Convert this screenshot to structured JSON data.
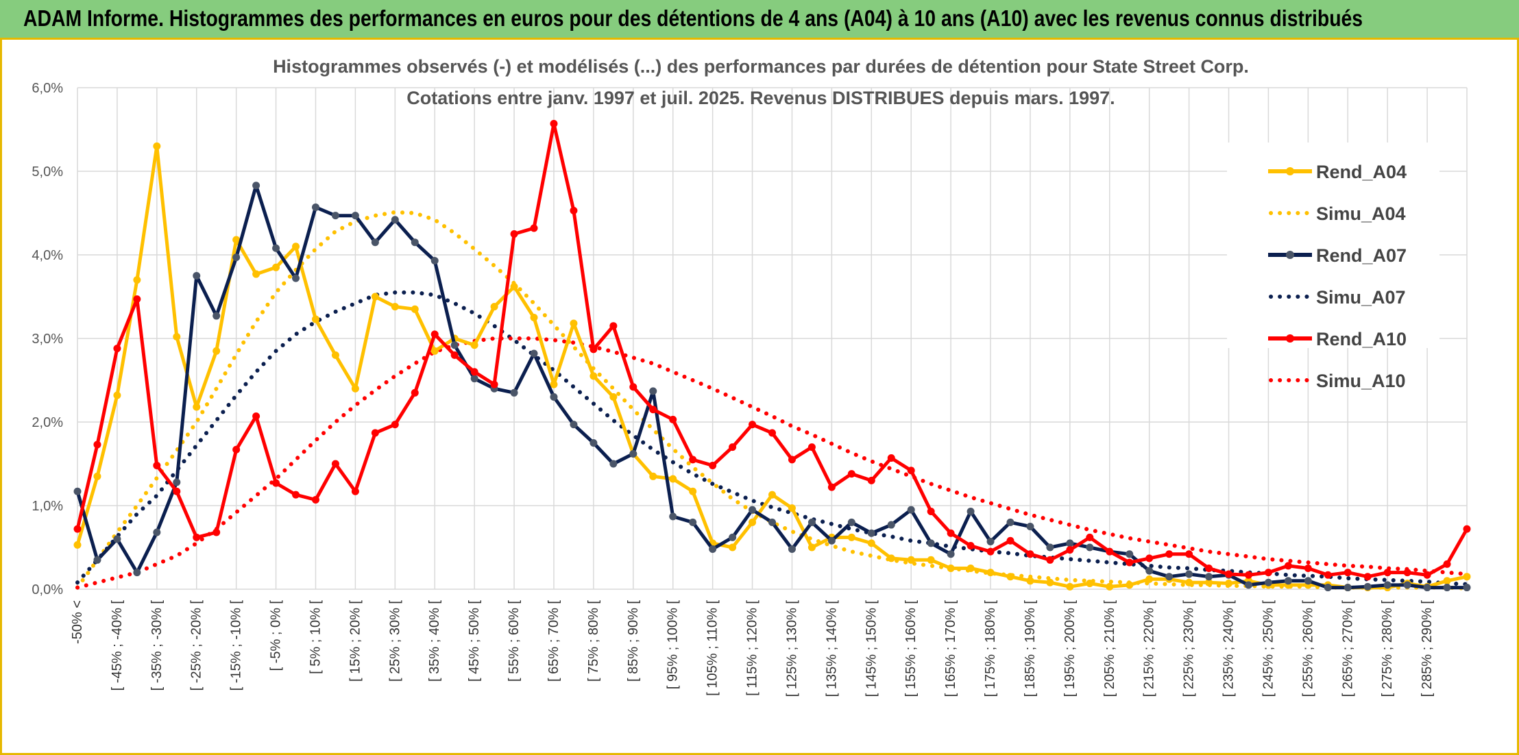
{
  "header": {
    "title": "ADAM Informe. Histogrammes des performances en euros pour des détentions de 4 ans (A04) à 10 ans (A10) avec les revenus connus distribués"
  },
  "chart_data": {
    "type": "line",
    "title": "Histogrammes observés (-) et modélisés (...) des performances par durées de détention pour State Street Corp.",
    "subtitle": "Cotations entre janv. 1997 et juil. 2025. Revenus DISTRIBUES depuis mars. 1997.",
    "ylim": [
      0,
      6
    ],
    "y_ticks": [
      "0,0%",
      "1,0%",
      "2,0%",
      "3,0%",
      "4,0%",
      "5,0%",
      "6,0%"
    ],
    "grid": true,
    "legend_position": "right",
    "tick_labels": [
      "-50% <",
      "[ -45% ; -40% [",
      "[ -35% ; -30% [",
      "[ -25% ; -20% [",
      "[ -15% ; -10% [",
      "[ -5% ; 0% [",
      "[ 5% ; 10% [",
      "[ 15% ; 20% [",
      "[ 25% ; 30% [",
      "[ 35% ; 40% [",
      "[ 45% ; 50% [",
      "[ 55% ; 60% [",
      "[ 65% ; 70% [",
      "[ 75% ; 80% [",
      "[ 85% ; 90% [",
      "[ 95% ; 100% [",
      "[ 105% ; 110% [",
      "[ 115% ; 120% [",
      "[ 125% ; 130% [",
      "[ 135% ; 140% [",
      "[ 145% ; 150% [",
      "[ 155% ; 160% [",
      "[ 165% ; 170% [",
      "[ 175% ; 180% [",
      "[ 185% ; 190% [",
      "[ 195% ; 200% [",
      "[ 205% ; 210% [",
      "[ 215% ; 220% [",
      "[ 225% ; 230% [",
      "[ 235% ; 240% [",
      "[ 245% ; 250% [",
      "[ 255% ; 260% [",
      "[ 265% ; 270% [",
      "[ 275% ; 280% [",
      "[ 285% ; 290% ["
    ],
    "series": [
      {
        "name": "Rend_A04",
        "color": "#FFC000",
        "style": "solid",
        "values": [
          0.53,
          1.35,
          2.32,
          3.7,
          5.3,
          3.02,
          2.18,
          2.85,
          4.18,
          3.77,
          3.85,
          4.1,
          3.23,
          2.8,
          2.4,
          3.5,
          3.38,
          3.35,
          2.85,
          3.0,
          2.92,
          3.38,
          3.62,
          3.25,
          2.45,
          3.18,
          2.55,
          2.3,
          1.62,
          1.35,
          1.32,
          1.17,
          0.55,
          0.5,
          0.8,
          1.13,
          0.97,
          0.5,
          0.62,
          0.62,
          0.55,
          0.37,
          0.35,
          0.35,
          0.25,
          0.25,
          0.2,
          0.15,
          0.1,
          0.08,
          0.03,
          0.07,
          0.03,
          0.05,
          0.12,
          0.12,
          0.08,
          0.08,
          0.07,
          0.1,
          0.05,
          0.05,
          0.05,
          0.05,
          0.02,
          0.02,
          0.02,
          0.07,
          0.03,
          0.1,
          0.15
        ]
      },
      {
        "name": "Simu_A04",
        "color": "#FFC000",
        "style": "dotted",
        "values": [
          0.02,
          0.35,
          0.68,
          1.0,
          1.33,
          1.66,
          2.0,
          2.4,
          2.81,
          3.2,
          3.55,
          3.82,
          4.07,
          4.28,
          4.4,
          4.47,
          4.51,
          4.5,
          4.42,
          4.26,
          4.07,
          3.87,
          3.66,
          3.42,
          3.16,
          2.9,
          2.64,
          2.4,
          2.15,
          1.91,
          1.68,
          1.46,
          1.27,
          1.08,
          0.93,
          0.8,
          0.69,
          0.6,
          0.52,
          0.45,
          0.4,
          0.35,
          0.31,
          0.28,
          0.25,
          0.22,
          0.19,
          0.17,
          0.15,
          0.13,
          0.11,
          0.1,
          0.09,
          0.08,
          0.07,
          0.06,
          0.05,
          0.05,
          0.04,
          0.04,
          0.03,
          0.03,
          0.03,
          0.02,
          0.02,
          0.02,
          0.02,
          0.02,
          0.02,
          0.02,
          0.01
        ]
      },
      {
        "name": "Rend_A07",
        "color": "#0B1F4F",
        "style": "solid",
        "values": [
          1.17,
          0.35,
          0.6,
          0.2,
          0.68,
          1.28,
          3.75,
          3.27,
          3.97,
          4.83,
          4.08,
          3.72,
          4.57,
          4.47,
          4.47,
          4.15,
          4.42,
          4.15,
          3.93,
          2.92,
          2.52,
          2.4,
          2.35,
          2.82,
          2.3,
          1.97,
          1.75,
          1.5,
          1.62,
          2.37,
          0.87,
          0.8,
          0.48,
          0.62,
          0.95,
          0.8,
          0.48,
          0.8,
          0.58,
          0.8,
          0.67,
          0.77,
          0.95,
          0.55,
          0.42,
          0.93,
          0.57,
          0.8,
          0.75,
          0.5,
          0.55,
          0.5,
          0.45,
          0.42,
          0.22,
          0.15,
          0.18,
          0.15,
          0.17,
          0.05,
          0.08,
          0.1,
          0.1,
          0.02,
          0.02,
          0.03,
          0.05,
          0.05,
          0.02,
          0.02,
          0.02
        ]
      },
      {
        "name": "Simu_A07",
        "color": "#0B1F4F",
        "style": "dotted",
        "values": [
          0.08,
          0.35,
          0.63,
          0.9,
          1.12,
          1.42,
          1.72,
          2.02,
          2.32,
          2.6,
          2.85,
          3.05,
          3.2,
          3.32,
          3.42,
          3.52,
          3.55,
          3.55,
          3.52,
          3.42,
          3.3,
          3.15,
          2.98,
          2.8,
          2.62,
          2.42,
          2.22,
          2.02,
          1.84,
          1.67,
          1.52,
          1.38,
          1.26,
          1.16,
          1.06,
          0.98,
          0.91,
          0.84,
          0.78,
          0.72,
          0.67,
          0.63,
          0.58,
          0.55,
          0.51,
          0.48,
          0.45,
          0.43,
          0.4,
          0.38,
          0.36,
          0.34,
          0.32,
          0.3,
          0.28,
          0.26,
          0.25,
          0.23,
          0.22,
          0.2,
          0.19,
          0.17,
          0.16,
          0.15,
          0.13,
          0.12,
          0.11,
          0.1,
          0.09,
          0.07,
          0.06
        ]
      },
      {
        "name": "Rend_A10",
        "color": "#FF0000",
        "style": "solid",
        "values": [
          0.72,
          1.73,
          2.88,
          3.47,
          1.48,
          1.17,
          0.62,
          0.68,
          1.67,
          2.07,
          1.27,
          1.13,
          1.07,
          1.5,
          1.17,
          1.87,
          1.97,
          2.35,
          3.05,
          2.8,
          2.6,
          2.45,
          4.25,
          4.32,
          5.57,
          4.53,
          2.87,
          3.15,
          2.42,
          2.15,
          2.03,
          1.55,
          1.48,
          1.7,
          1.97,
          1.87,
          1.55,
          1.7,
          1.22,
          1.38,
          1.3,
          1.57,
          1.42,
          0.93,
          0.67,
          0.52,
          0.45,
          0.58,
          0.42,
          0.35,
          0.47,
          0.62,
          0.45,
          0.32,
          0.37,
          0.42,
          0.42,
          0.25,
          0.18,
          0.17,
          0.2,
          0.28,
          0.25,
          0.17,
          0.2,
          0.15,
          0.2,
          0.2,
          0.17,
          0.3,
          0.72
        ]
      },
      {
        "name": "Simu_A10",
        "color": "#FF0000",
        "style": "dotted",
        "values": [
          0.02,
          0.08,
          0.14,
          0.2,
          0.3,
          0.4,
          0.55,
          0.72,
          0.92,
          1.12,
          1.32,
          1.55,
          1.78,
          2.0,
          2.2,
          2.38,
          2.55,
          2.7,
          2.84,
          2.92,
          2.97,
          3.0,
          3.0,
          3.0,
          2.98,
          2.95,
          2.9,
          2.84,
          2.77,
          2.7,
          2.6,
          2.5,
          2.4,
          2.29,
          2.18,
          2.07,
          1.95,
          1.85,
          1.74,
          1.63,
          1.53,
          1.44,
          1.35,
          1.26,
          1.18,
          1.1,
          1.03,
          0.96,
          0.89,
          0.83,
          0.77,
          0.71,
          0.66,
          0.61,
          0.57,
          0.53,
          0.49,
          0.45,
          0.42,
          0.39,
          0.36,
          0.34,
          0.32,
          0.3,
          0.28,
          0.27,
          0.25,
          0.24,
          0.22,
          0.2,
          0.18
        ]
      }
    ]
  }
}
